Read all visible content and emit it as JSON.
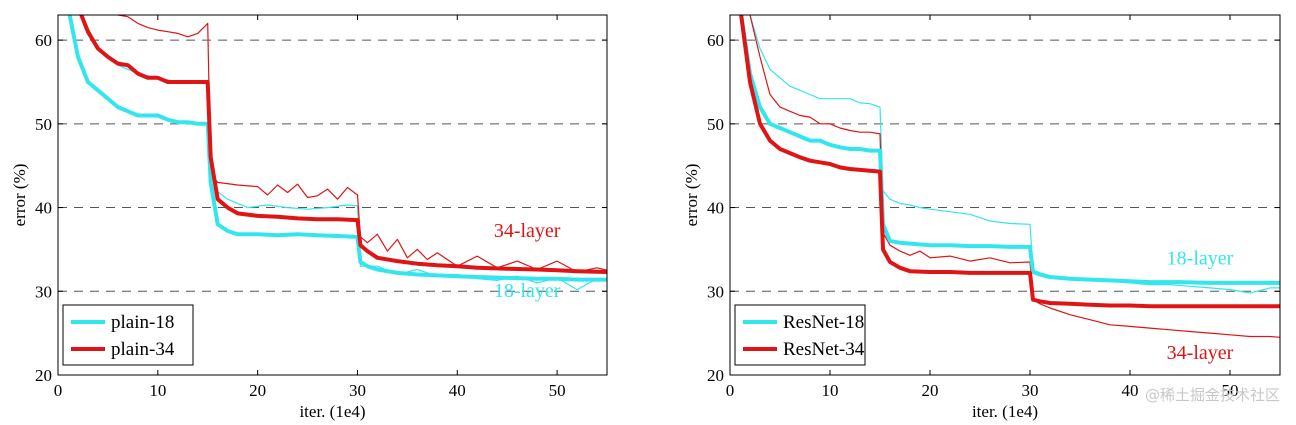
{
  "watermark": "@稀土掘金技术社区",
  "colors": {
    "cyan": "#33e6ee",
    "red": "#e01414",
    "grid": "#555555",
    "axis": "#000000"
  },
  "chart_data": [
    {
      "type": "line",
      "xlabel": "iter. (1e4)",
      "ylabel": "error (%)",
      "xlim": [
        0,
        55
      ],
      "ylim": [
        20,
        63
      ],
      "xticks": [
        "0",
        "10",
        "20",
        "30",
        "40",
        "50"
      ],
      "yticks": [
        "20",
        "30",
        "40",
        "50",
        "60"
      ],
      "grid": "dashed horizontal lines at 30, 40, 50, 60",
      "legend_position": "bottom-left",
      "legend": [
        "plain-18",
        "plain-34"
      ],
      "annotations": [
        {
          "text": "34-layer",
          "x": 47,
          "y": 36.5,
          "color": "#e01414"
        },
        {
          "text": "18-layer",
          "x": 47,
          "y": 29.3,
          "color": "#33e6ee"
        }
      ],
      "series": [
        {
          "name": "plain-18",
          "style": "thick",
          "color": "#33e6ee",
          "x": [
            1,
            2,
            3,
            4,
            5,
            6,
            7,
            8,
            9,
            10,
            11,
            12,
            13,
            14,
            15,
            15.3,
            16,
            17,
            18,
            20,
            22,
            24,
            26,
            28,
            30,
            30.3,
            31,
            32,
            34,
            36,
            38,
            40,
            42,
            45,
            48,
            50,
            52,
            55
          ],
          "y": [
            64,
            58,
            55,
            54,
            53,
            52,
            51.5,
            51,
            51,
            51,
            50.5,
            50.2,
            50.2,
            50,
            50,
            43,
            38,
            37.2,
            36.8,
            36.8,
            36.7,
            36.8,
            36.7,
            36.6,
            36.5,
            33.5,
            33,
            32.6,
            32.2,
            32,
            31.9,
            31.8,
            31.7,
            31.6,
            31.5,
            31.5,
            31.4,
            31.4
          ]
        },
        {
          "name": "plain-34",
          "style": "thick",
          "color": "#e01414",
          "x": [
            2,
            3,
            4,
            5,
            6,
            7,
            8,
            9,
            10,
            11,
            12,
            13,
            14,
            15,
            15.3,
            16,
            17,
            18,
            20,
            22,
            24,
            26,
            28,
            30,
            30.3,
            31,
            32,
            34,
            36,
            38,
            40,
            42,
            45,
            48,
            50,
            52,
            55
          ],
          "y": [
            64,
            61,
            59,
            58,
            57.2,
            57,
            56,
            55.5,
            55.5,
            55,
            55,
            55,
            55,
            55,
            46,
            41,
            40,
            39.3,
            39,
            38.9,
            38.7,
            38.6,
            38.6,
            38.5,
            35.5,
            34.8,
            34,
            33.6,
            33.3,
            33.1,
            33,
            32.8,
            32.7,
            32.6,
            32.5,
            32.4,
            32.3
          ]
        },
        {
          "name": "plain-18 (val)",
          "style": "thin",
          "color": "#33e6ee",
          "x": [
            2,
            4,
            6,
            8,
            10,
            12,
            14,
            15,
            15.3,
            17,
            19,
            21,
            23,
            25,
            27,
            29,
            30,
            30.3,
            32,
            34,
            36,
            38,
            40,
            42,
            44,
            46,
            48,
            50,
            52,
            54,
            55
          ],
          "y": [
            64,
            59,
            57,
            56,
            55.5,
            55,
            55,
            55,
            42.5,
            41,
            40,
            40.3,
            40,
            39.8,
            40,
            40.3,
            40.2,
            33,
            33,
            32,
            32.6,
            31.8,
            32,
            31.5,
            31.3,
            31.8,
            31,
            31.6,
            30.2,
            31.5,
            31.3
          ]
        },
        {
          "name": "plain-34 (val)",
          "style": "thin",
          "color": "#e01414",
          "x": [
            6,
            7,
            8,
            9,
            10,
            11,
            12,
            13,
            14,
            15,
            15.3,
            16,
            18,
            20,
            21,
            22,
            23,
            24,
            25,
            26,
            27,
            28,
            29,
            30,
            30.3,
            31,
            32,
            33,
            34,
            35,
            36,
            37,
            38,
            40,
            42,
            44,
            46,
            48,
            50,
            52,
            54,
            55
          ],
          "y": [
            63,
            62.8,
            62,
            61.5,
            61.2,
            61,
            60.8,
            60.4,
            60.8,
            62,
            44,
            43,
            42.7,
            42.5,
            41.5,
            42.7,
            41.8,
            42.8,
            41.2,
            41.4,
            42.2,
            41,
            42.4,
            41.5,
            36.5,
            35.8,
            36.8,
            34.8,
            36.2,
            34,
            35,
            33.8,
            34.6,
            33,
            34.2,
            32.8,
            33.6,
            32.6,
            33.6,
            32.3,
            32.8,
            32.5
          ]
        }
      ]
    },
    {
      "type": "line",
      "xlabel": "iter. (1e4)",
      "ylabel": "error (%)",
      "xlim": [
        0,
        55
      ],
      "ylim": [
        20,
        63
      ],
      "xticks": [
        "0",
        "10",
        "20",
        "30",
        "40",
        "50"
      ],
      "yticks": [
        "20",
        "30",
        "40",
        "50",
        "60"
      ],
      "grid": "dashed horizontal lines at 30, 40, 50, 60",
      "legend_position": "bottom-left",
      "legend": [
        "ResNet-18",
        "ResNet-34"
      ],
      "annotations": [
        {
          "text": "18-layer",
          "x": 47,
          "y": 33.2,
          "color": "#33e6ee"
        },
        {
          "text": "34-layer",
          "x": 47,
          "y": 21.9,
          "color": "#e01414"
        }
      ],
      "series": [
        {
          "name": "ResNet-18",
          "style": "thick",
          "color": "#33e6ee",
          "x": [
            1,
            2,
            3,
            4,
            5,
            6,
            7,
            8,
            9,
            10,
            11,
            12,
            13,
            14,
            15,
            15.3,
            16,
            17,
            18,
            20,
            22,
            24,
            26,
            28,
            30,
            30.3,
            31,
            32,
            34,
            36,
            38,
            40,
            42,
            45,
            48,
            50,
            52,
            55
          ],
          "y": [
            64,
            56,
            52,
            50,
            49.5,
            49,
            48.5,
            48,
            48,
            47.5,
            47.2,
            47,
            47,
            46.8,
            46.8,
            38,
            36,
            35.8,
            35.7,
            35.5,
            35.5,
            35.4,
            35.4,
            35.3,
            35.3,
            32.3,
            32,
            31.7,
            31.5,
            31.4,
            31.3,
            31.2,
            31.1,
            31.1,
            31,
            31,
            31,
            31
          ]
        },
        {
          "name": "ResNet-34",
          "style": "thick",
          "color": "#e01414",
          "x": [
            1,
            2,
            3,
            4,
            5,
            6,
            7,
            8,
            9,
            10,
            11,
            12,
            13,
            14,
            15,
            15.3,
            16,
            17,
            18,
            20,
            22,
            24,
            26,
            28,
            30,
            30.3,
            31,
            32,
            34,
            36,
            38,
            40,
            42,
            45,
            48,
            50,
            52,
            55
          ],
          "y": [
            64,
            55,
            50,
            48,
            47,
            46.5,
            46,
            45.6,
            45.4,
            45.2,
            44.8,
            44.6,
            44.5,
            44.4,
            44.3,
            35,
            33.5,
            32.8,
            32.4,
            32.3,
            32.3,
            32.2,
            32.2,
            32.2,
            32.2,
            29,
            28.8,
            28.6,
            28.5,
            28.4,
            28.3,
            28.3,
            28.2,
            28.2,
            28.2,
            28.2,
            28.2,
            28.2
          ]
        },
        {
          "name": "ResNet-18 (val)",
          "style": "thin",
          "color": "#33e6ee",
          "x": [
            2,
            3,
            4,
            5,
            6,
            7,
            8,
            9,
            10,
            11,
            12,
            13,
            14,
            15,
            15.3,
            16,
            17,
            18,
            19,
            20,
            22,
            24,
            26,
            28,
            30,
            30.3,
            32,
            34,
            36,
            38,
            40,
            42,
            44,
            46,
            48,
            50,
            52,
            54,
            55
          ],
          "y": [
            63,
            59,
            56.5,
            55.5,
            54.5,
            54,
            53.5,
            53,
            53,
            53,
            53,
            52.5,
            52.4,
            52,
            42,
            41,
            40.5,
            40.3,
            40,
            39.8,
            39.5,
            39.2,
            38.4,
            38.1,
            38,
            32.5,
            31.8,
            31.6,
            31.4,
            31.2,
            31,
            30.8,
            30.8,
            30.6,
            30.4,
            30.2,
            29.8,
            30.4,
            30.4
          ]
        },
        {
          "name": "ResNet-34 (val)",
          "style": "thin",
          "color": "#e01414",
          "x": [
            2,
            3,
            4,
            5,
            6,
            7,
            8,
            9,
            10,
            11,
            12,
            13,
            14,
            15,
            15.3,
            16,
            17,
            18,
            19,
            20,
            22,
            24,
            26,
            28,
            30,
            30.3,
            31,
            32,
            34,
            36,
            38,
            40,
            42,
            44,
            46,
            48,
            50,
            52,
            54,
            55
          ],
          "y": [
            63,
            58,
            53.5,
            52,
            51.5,
            51,
            50.8,
            50,
            50,
            49.5,
            49.2,
            49,
            49,
            48.8,
            37,
            35.5,
            34.8,
            34.3,
            34.8,
            34,
            34.2,
            33.6,
            34,
            33.4,
            33.5,
            29,
            28.5,
            28,
            27.2,
            26.6,
            26,
            25.8,
            25.6,
            25.4,
            25.2,
            25,
            24.8,
            24.6,
            24.6,
            24.5
          ]
        }
      ]
    }
  ]
}
